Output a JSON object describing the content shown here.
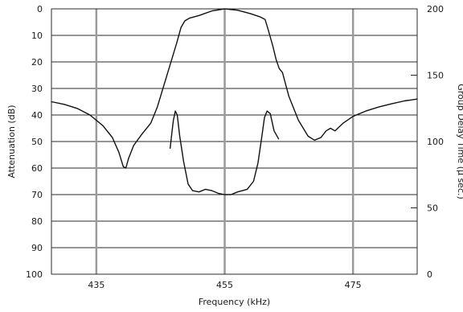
{
  "chart_data": {
    "type": "line",
    "xlabel": "Frequency (kHz)",
    "ylabel_left": "Attenuation (dB)",
    "ylabel_right": "Group Delay Time (μ sec.)",
    "xlim": [
      428,
      485
    ],
    "ylim_left": [
      0,
      100
    ],
    "ylim_right": [
      0,
      200
    ],
    "y_left_inverted": true,
    "grid": true,
    "x_ticks": [
      435,
      455,
      475
    ],
    "x_tick_labels": [
      "435",
      "455",
      "475"
    ],
    "y_left_ticks": [
      0,
      10,
      20,
      30,
      40,
      50,
      60,
      70,
      80,
      90,
      100
    ],
    "y_left_tick_labels": [
      "0",
      "10",
      "20",
      "30",
      "40",
      "50",
      "60",
      "70",
      "80",
      "90",
      "100"
    ],
    "y_right_ticks": [
      0,
      50,
      100,
      150,
      200
    ],
    "y_right_tick_labels": [
      "0",
      "50",
      "100",
      "150",
      "200"
    ],
    "series": [
      {
        "axis": "left",
        "x": [
          428,
          430,
          432,
          434,
          436,
          437.5,
          438.5,
          439.2,
          439.6,
          440,
          440.8,
          442,
          443.5,
          444.5,
          445.5,
          446.5,
          447.5,
          448.2,
          448.8,
          449.5,
          451,
          453,
          455,
          457,
          459,
          460.5,
          461.3,
          461.8,
          462.5,
          463,
          463.5,
          464,
          465,
          466.5,
          468,
          469,
          470,
          470.8,
          471.5,
          472.2,
          473.5,
          475,
          477,
          479,
          481,
          483,
          485
        ],
        "y": [
          35,
          36,
          37.5,
          40,
          44,
          48.5,
          54,
          59.5,
          60,
          56.5,
          51.5,
          47.5,
          43,
          37,
          29,
          21,
          13,
          7,
          4.5,
          3.5,
          2.5,
          0.8,
          0,
          0.5,
          1.8,
          3,
          4,
          8,
          14,
          19,
          22.5,
          24,
          33,
          42,
          48,
          49.5,
          48.5,
          46,
          45,
          46,
          43,
          40.5,
          38.5,
          37,
          35.8,
          34.7,
          34
        ]
      },
      {
        "axis": "right",
        "x": [
          446.5,
          446.8,
          447,
          447.3,
          447.6,
          448,
          448.6,
          449.3,
          450,
          451,
          452,
          453,
          454,
          455,
          456,
          457,
          458.5,
          459.5,
          460.2,
          460.8,
          461.2,
          461.6,
          462.1,
          462.7,
          463.4
        ],
        "y": [
          95,
          108,
          116,
          123,
          120,
          104,
          85,
          68,
          63,
          62,
          64,
          63,
          61,
          60,
          60,
          62,
          64,
          70,
          84,
          104,
          118,
          123,
          121,
          108,
          102
        ]
      }
    ]
  }
}
